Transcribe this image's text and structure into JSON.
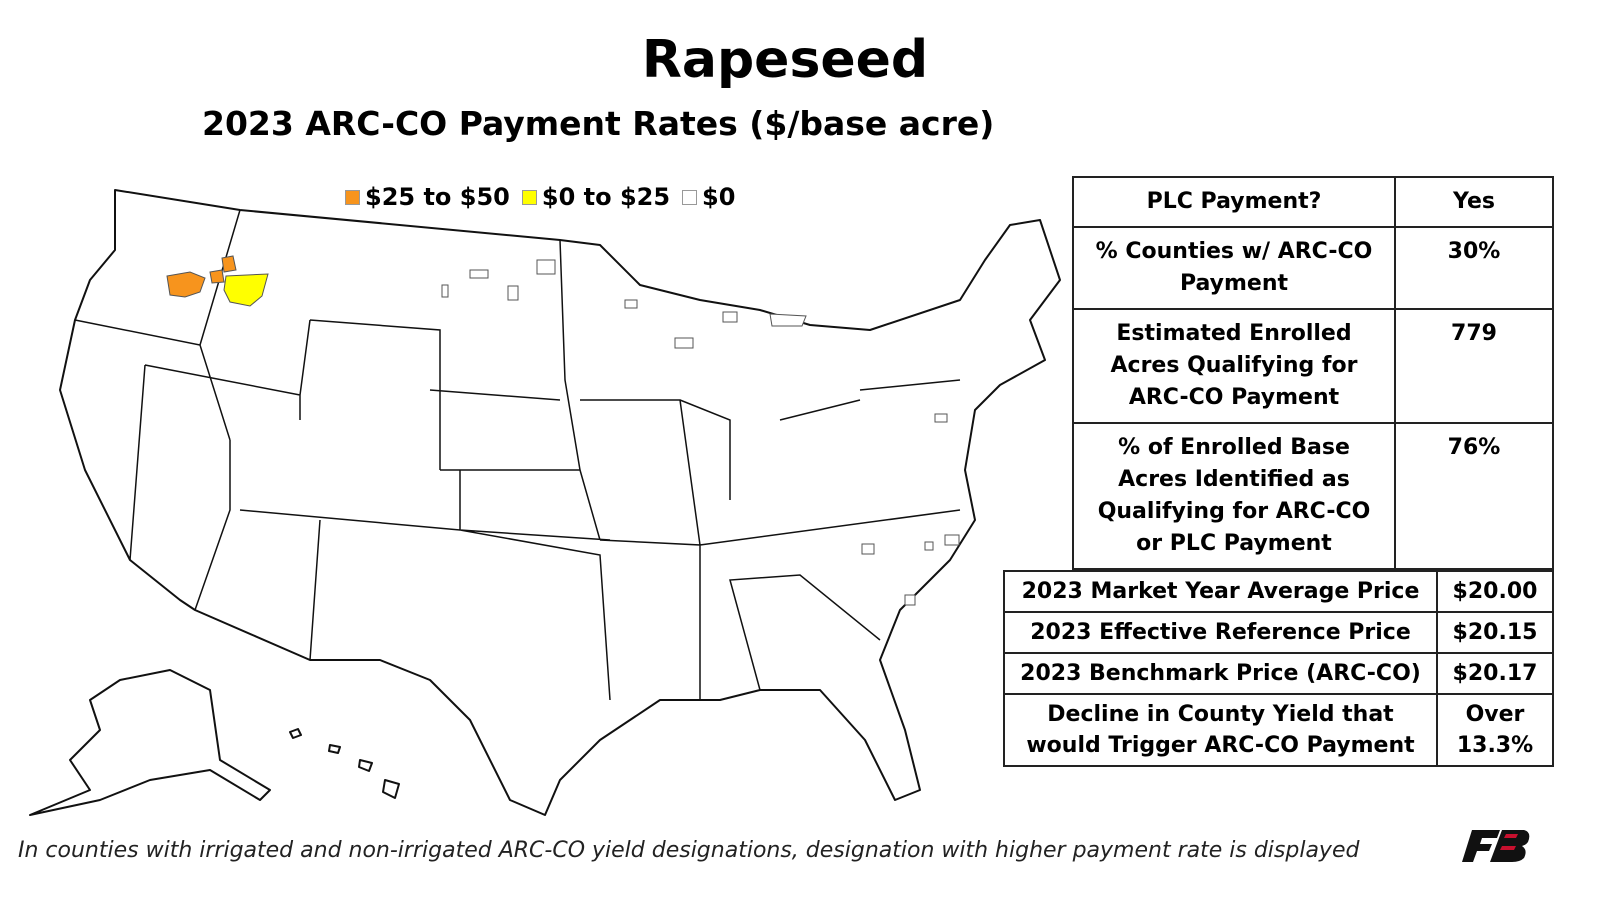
{
  "header": {
    "title": "Rapeseed",
    "subtitle": "2023 ARC-CO Payment Rates ($/base acre)"
  },
  "legend": [
    {
      "label": "$25 to $50",
      "color": "#f7941d"
    },
    {
      "label": "$0 to $25",
      "color": "#ffff00"
    },
    {
      "label": "$0",
      "color": "#ffffff"
    }
  ],
  "table1": {
    "rows": [
      [
        "PLC Payment?",
        "Yes"
      ],
      [
        "% Counties w/ ARC-CO Payment",
        "30%"
      ],
      [
        "Estimated Enrolled Acres Qualifying for ARC-CO Payment",
        "779"
      ],
      [
        "% of Enrolled Base Acres Identified as Qualifying for ARC-CO or PLC Payment",
        "76%"
      ]
    ]
  },
  "table2": {
    "rows": [
      [
        "2023 Market Year Average Price",
        "$20.00"
      ],
      [
        "2023 Effective Reference Price",
        "$20.15"
      ],
      [
        "2023 Benchmark Price (ARC-CO)",
        "$20.17"
      ],
      [
        "Decline in County Yield that would Trigger ARC-CO Payment",
        "Over 13.3%"
      ]
    ]
  },
  "footnote": "In counties with irrigated and non-irrigated ARC-CO yield designations, designation with higher payment rate is displayed"
}
